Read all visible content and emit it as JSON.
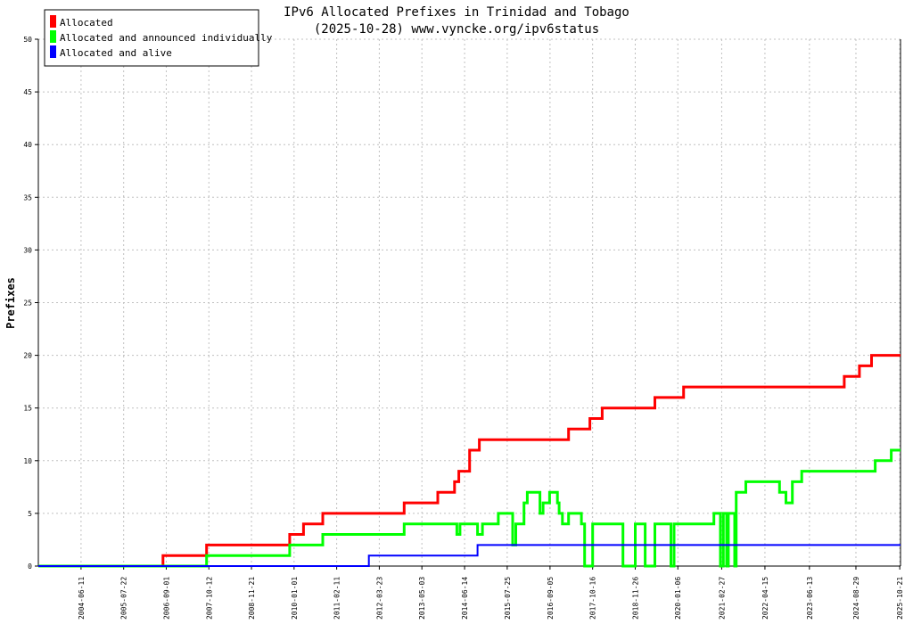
{
  "chart_data": {
    "type": "line",
    "title": "IPv6 Allocated Prefixes in Trinidad and Tobago",
    "subtitle": "(2025-10-28) www.vyncke.org/ipv6status",
    "ylabel": "Prefixes",
    "xlabel": "",
    "ylim": [
      0,
      50
    ],
    "y_ticks": [
      0,
      5,
      10,
      15,
      20,
      25,
      30,
      35,
      40,
      45,
      50
    ],
    "x_range": [
      "2003-05-01",
      "2025-10-28"
    ],
    "x_tick_labels": [
      "2004-06-11",
      "2005-07-22",
      "2006-09-01",
      "2007-10-12",
      "2008-11-21",
      "2010-01-01",
      "2011-02-11",
      "2012-03-23",
      "2013-05-03",
      "2014-06-14",
      "2015-07-25",
      "2016-09-05",
      "2017-10-16",
      "2018-11-26",
      "2020-01-06",
      "2021-02-27",
      "2022-04-15",
      "2023-06-13",
      "2024-08-29",
      "2025-10-21"
    ],
    "grid": true,
    "legend_position": "top-left",
    "series": [
      {
        "name": "Allocated",
        "color": "#ff0000",
        "points": [
          [
            "2003-05-01",
            0
          ],
          [
            "2006-08-01",
            0
          ],
          [
            "2006-08-01",
            1
          ],
          [
            "2007-09-20",
            1
          ],
          [
            "2007-09-20",
            2
          ],
          [
            "2009-11-20",
            2
          ],
          [
            "2009-11-20",
            3
          ],
          [
            "2010-04-01",
            3
          ],
          [
            "2010-04-01",
            4
          ],
          [
            "2010-10-01",
            4
          ],
          [
            "2010-10-01",
            5
          ],
          [
            "2012-11-15",
            5
          ],
          [
            "2012-11-15",
            6
          ],
          [
            "2013-10-01",
            6
          ],
          [
            "2013-10-01",
            7
          ],
          [
            "2014-03-10",
            7
          ],
          [
            "2014-03-10",
            8
          ],
          [
            "2014-04-20",
            8
          ],
          [
            "2014-04-20",
            9
          ],
          [
            "2014-08-01",
            9
          ],
          [
            "2014-08-01",
            11
          ],
          [
            "2014-11-01",
            11
          ],
          [
            "2014-11-01",
            12
          ],
          [
            "2016-10-01",
            12
          ],
          [
            "2017-03-01",
            12
          ],
          [
            "2017-03-01",
            13
          ],
          [
            "2017-09-20",
            13
          ],
          [
            "2017-09-20",
            14
          ],
          [
            "2018-01-15",
            14
          ],
          [
            "2018-01-15",
            15
          ],
          [
            "2019-06-01",
            15
          ],
          [
            "2019-06-01",
            16
          ],
          [
            "2020-03-01",
            16
          ],
          [
            "2020-03-01",
            17
          ],
          [
            "2024-05-10",
            17
          ],
          [
            "2024-05-10",
            18
          ],
          [
            "2024-10-01",
            18
          ],
          [
            "2024-10-01",
            19
          ],
          [
            "2025-01-25",
            19
          ],
          [
            "2025-01-25",
            20
          ],
          [
            "2025-10-28",
            20
          ]
        ]
      },
      {
        "name": "Allocated and announced individually",
        "color": "#00ff00",
        "points": [
          [
            "2003-05-01",
            0
          ],
          [
            "2007-09-20",
            0
          ],
          [
            "2007-09-20",
            1
          ],
          [
            "2009-11-20",
            1
          ],
          [
            "2009-11-20",
            2
          ],
          [
            "2010-10-01",
            2
          ],
          [
            "2010-10-01",
            3
          ],
          [
            "2012-11-15",
            3
          ],
          [
            "2012-11-15",
            4
          ],
          [
            "2014-04-01",
            4
          ],
          [
            "2014-04-01",
            3
          ],
          [
            "2014-05-01",
            3
          ],
          [
            "2014-05-01",
            4
          ],
          [
            "2014-10-15",
            4
          ],
          [
            "2014-10-15",
            3
          ],
          [
            "2014-12-01",
            3
          ],
          [
            "2014-12-01",
            4
          ],
          [
            "2015-05-01",
            4
          ],
          [
            "2015-05-01",
            5
          ],
          [
            "2015-09-15",
            5
          ],
          [
            "2015-09-15",
            2
          ],
          [
            "2015-10-15",
            2
          ],
          [
            "2015-10-15",
            4
          ],
          [
            "2016-01-01",
            4
          ],
          [
            "2016-01-01",
            6
          ],
          [
            "2016-02-01",
            6
          ],
          [
            "2016-02-01",
            7
          ],
          [
            "2016-06-01",
            7
          ],
          [
            "2016-06-01",
            5
          ],
          [
            "2016-07-01",
            5
          ],
          [
            "2016-07-01",
            6
          ],
          [
            "2016-09-01",
            6
          ],
          [
            "2016-09-01",
            7
          ],
          [
            "2016-11-15",
            7
          ],
          [
            "2016-11-15",
            6
          ],
          [
            "2016-12-01",
            6
          ],
          [
            "2016-12-01",
            5
          ],
          [
            "2017-01-01",
            5
          ],
          [
            "2017-01-01",
            4
          ],
          [
            "2017-03-01",
            4
          ],
          [
            "2017-03-01",
            5
          ],
          [
            "2017-07-01",
            5
          ],
          [
            "2017-07-01",
            4
          ],
          [
            "2017-08-01",
            4
          ],
          [
            "2017-08-01",
            0
          ],
          [
            "2017-10-16",
            0
          ],
          [
            "2017-10-16",
            4
          ],
          [
            "2018-08-01",
            4
          ],
          [
            "2018-08-01",
            0
          ],
          [
            "2018-11-26",
            0
          ],
          [
            "2018-11-26",
            4
          ],
          [
            "2019-03-01",
            4
          ],
          [
            "2019-03-01",
            0
          ],
          [
            "2019-06-01",
            0
          ],
          [
            "2019-06-01",
            4
          ],
          [
            "2019-11-01",
            4
          ],
          [
            "2019-11-01",
            0
          ],
          [
            "2019-12-01",
            0
          ],
          [
            "2019-12-01",
            4
          ],
          [
            "2020-12-15",
            4
          ],
          [
            "2020-12-15",
            5
          ],
          [
            "2021-02-15",
            5
          ],
          [
            "2021-02-15",
            0
          ],
          [
            "2021-03-15",
            0
          ],
          [
            "2021-03-15",
            5
          ],
          [
            "2021-04-15",
            5
          ],
          [
            "2021-04-15",
            0
          ],
          [
            "2021-05-01",
            0
          ],
          [
            "2021-05-01",
            5
          ],
          [
            "2021-07-01",
            5
          ],
          [
            "2021-07-01",
            0
          ],
          [
            "2021-07-15",
            0
          ],
          [
            "2021-07-15",
            7
          ],
          [
            "2021-10-15",
            7
          ],
          [
            "2021-10-15",
            8
          ],
          [
            "2022-09-01",
            8
          ],
          [
            "2022-09-01",
            7
          ],
          [
            "2022-11-01",
            7
          ],
          [
            "2022-11-01",
            6
          ],
          [
            "2023-01-01",
            6
          ],
          [
            "2023-01-01",
            8
          ],
          [
            "2023-04-01",
            8
          ],
          [
            "2023-04-01",
            9
          ],
          [
            "2025-03-01",
            9
          ],
          [
            "2025-03-01",
            10
          ],
          [
            "2025-08-01",
            10
          ],
          [
            "2025-08-01",
            11
          ],
          [
            "2025-10-28",
            11
          ]
        ]
      },
      {
        "name": "Allocated and alive",
        "color": "#0000ff",
        "points": [
          [
            "2003-05-01",
            0
          ],
          [
            "2011-12-15",
            0
          ],
          [
            "2011-12-15",
            1
          ],
          [
            "2014-10-15",
            1
          ],
          [
            "2014-10-15",
            2
          ],
          [
            "2025-10-28",
            2
          ]
        ]
      }
    ]
  }
}
